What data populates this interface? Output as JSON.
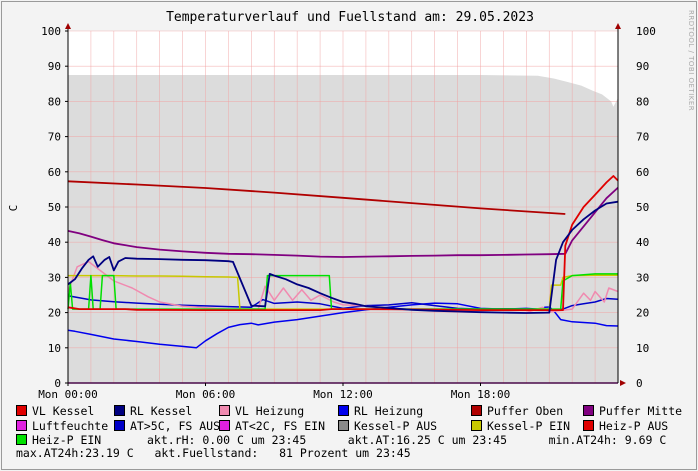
{
  "chart_data": {
    "type": "area",
    "title": "Temperaturverlauf und Fuellstand am: 29.05.2023",
    "ylabel": "C",
    "ylim": [
      0,
      100
    ],
    "xlim": [
      0,
      24
    ],
    "yticks": [
      0,
      10,
      20,
      30,
      40,
      50,
      60,
      70,
      80,
      90,
      100
    ],
    "xticks": [
      {
        "x": 0,
        "label": "Mon 00:00"
      },
      {
        "x": 6,
        "label": "Mon 06:00"
      },
      {
        "x": 12,
        "label": "Mon 12:00"
      },
      {
        "x": 18,
        "label": "Mon 18:00"
      }
    ],
    "grid": true,
    "legend_position": "bottom",
    "fill_series": {
      "name": "akt.Fuellstand",
      "x": [
        0,
        3,
        6,
        9,
        12,
        15,
        18,
        20.5,
        21.2,
        21.8,
        22.4,
        22.9,
        23.3,
        23.7,
        23.8,
        24
      ],
      "y": [
        87.5,
        87.5,
        87.5,
        87.5,
        87.5,
        87.5,
        87.5,
        87.3,
        86.5,
        85.5,
        84.5,
        83.0,
        82.0,
        80.0,
        78.5,
        81.0
      ]
    },
    "series": [
      {
        "name": "Luftfeuchte",
        "color": "#e020e0",
        "x": [
          0,
          24
        ],
        "y": [
          0,
          0
        ]
      },
      {
        "name": "Puffer Oben",
        "color": "#b00000",
        "x": [
          0,
          3,
          6,
          9,
          12,
          15,
          18,
          21.7
        ],
        "y": [
          57.3,
          56.4,
          55.4,
          54.1,
          52.6,
          51.1,
          49.6,
          48.0
        ]
      },
      {
        "name": "Puffer Mitte",
        "color": "#800080",
        "x": [
          0,
          0.5,
          1,
          1.5,
          2,
          3,
          4,
          5,
          6,
          7,
          8,
          9,
          10,
          11,
          12,
          13,
          14,
          15,
          16,
          17,
          18,
          19,
          20,
          21,
          21.7,
          22,
          22.5,
          23,
          23.5,
          24
        ],
        "y": [
          43.2,
          42.5,
          41.6,
          40.6,
          39.7,
          38.6,
          37.9,
          37.4,
          37.0,
          36.7,
          36.6,
          36.4,
          36.2,
          35.9,
          35.8,
          35.9,
          36.0,
          36.1,
          36.2,
          36.3,
          36.3,
          36.4,
          36.5,
          36.6,
          36.7,
          40.5,
          44.5,
          48.5,
          52.5,
          55.5
        ]
      },
      {
        "name": "RL Heizung",
        "color": "#0000ee",
        "x": [
          0,
          0.3,
          1,
          2,
          3,
          4,
          5,
          5.6,
          6,
          6.5,
          7,
          7.5,
          8,
          8.3,
          9,
          10,
          11,
          12,
          13,
          14,
          15,
          16,
          17,
          18,
          19,
          20,
          20.5,
          20.7,
          20.8,
          21,
          21.2,
          21.5,
          22,
          22.5,
          23,
          23.5,
          24
        ],
        "y": [
          15.0,
          14.7,
          13.8,
          12.5,
          11.8,
          11.0,
          10.4,
          10.0,
          12.0,
          14.0,
          15.8,
          16.6,
          17.0,
          16.5,
          17.3,
          18.0,
          19.0,
          20.0,
          20.8,
          21.5,
          22.2,
          22.7,
          22.5,
          21.2,
          21.0,
          21.2,
          21.0,
          20.8,
          21.5,
          21.6,
          20.5,
          18.0,
          17.4,
          17.2,
          17.0,
          16.3,
          16.2
        ]
      },
      {
        "name": "AT>5C, FS AUS",
        "color": "#0000c8",
        "x": [
          0,
          1,
          2,
          3,
          4,
          5,
          6,
          7,
          8,
          8.5,
          9,
          10,
          11,
          12,
          13,
          14,
          15,
          16,
          17,
          18,
          19,
          20,
          21,
          21.6,
          22,
          22.5,
          23,
          23.5,
          24
        ],
        "y": [
          24.8,
          23.6,
          23.1,
          22.7,
          22.4,
          22.1,
          21.9,
          21.7,
          21.5,
          23.7,
          22.6,
          23.0,
          22.5,
          21.2,
          22.0,
          22.2,
          22.8,
          22.0,
          21.2,
          21.0,
          21.1,
          21.0,
          20.6,
          21.0,
          22.0,
          22.5,
          23.0,
          24.0,
          23.8
        ]
      },
      {
        "name": "VL Heizung",
        "color": "#f08ab0",
        "x": [
          0,
          0.4,
          0.9,
          1.6,
          2,
          2.8,
          3.5,
          4,
          4.6,
          5,
          6,
          7,
          8.3,
          8.6,
          9,
          9.4,
          9.8,
          10.2,
          10.6,
          11,
          11.6,
          12,
          12.8,
          13.5,
          14,
          15,
          16,
          17,
          18,
          19,
          20,
          20.7,
          21,
          22,
          22.5,
          22.8,
          23,
          23.4,
          23.6,
          24
        ],
        "y": [
          26.0,
          33.0,
          34.5,
          31.0,
          29.0,
          27.0,
          24.5,
          23.0,
          22.3,
          21.8,
          21.4,
          21.0,
          21.0,
          27.5,
          23.5,
          27.0,
          23.5,
          26.5,
          23.5,
          25.0,
          23.0,
          22.2,
          22.0,
          21.5,
          21.0,
          20.8,
          20.6,
          20.4,
          20.2,
          20.0,
          20.0,
          21.5,
          20.2,
          21.0,
          25.5,
          23.5,
          26.0,
          23.0,
          27.0,
          26.0
        ]
      },
      {
        "name": "Kessel-P EIN",
        "color": "#c8c800",
        "x": [
          0,
          1,
          2,
          3,
          4,
          5,
          6,
          7,
          7.4,
          7.5,
          8,
          9,
          10,
          12,
          15,
          18,
          20,
          21.0,
          21.1,
          21.5,
          21.6,
          22,
          23,
          24
        ],
        "y": [
          30.5,
          30.5,
          30.5,
          30.4,
          30.4,
          30.3,
          30.2,
          30.1,
          30.0,
          21.0,
          21.0,
          21.0,
          21.0,
          21.0,
          21.0,
          21.0,
          21.0,
          21.0,
          27.8,
          27.8,
          30.0,
          30.5,
          30.6,
          30.6
        ]
      },
      {
        "name": "Heiz-P EIN",
        "color": "#00e000",
        "x": [
          0,
          0.1,
          0.2,
          0.9,
          1.0,
          1.1,
          1.4,
          1.5,
          1.9,
          2.0,
          2.1,
          8.6,
          8.7,
          11.0,
          11.4,
          11.5,
          21.5,
          21.6,
          22,
          23,
          24
        ],
        "y": [
          21.0,
          28.5,
          21.0,
          21.0,
          30.5,
          21.0,
          21.0,
          30.5,
          30.5,
          30.5,
          21.0,
          21.0,
          30.5,
          30.5,
          30.5,
          21.0,
          21.0,
          29.0,
          30.5,
          31.0,
          31.0
        ]
      },
      {
        "name": "Heiz-P AUS",
        "color": "#e00000",
        "x": [
          0,
          0.5,
          1.0,
          1.6,
          2.1,
          2.5,
          3,
          6,
          8.6,
          8.8,
          9,
          11,
          11.5,
          12,
          15,
          18,
          21.6,
          21.7,
          22,
          22.5,
          23,
          23.5,
          23.8,
          24
        ],
        "y": [
          21.5,
          21.0,
          21.0,
          21.0,
          21.0,
          21.0,
          20.8,
          20.7,
          20.7,
          20.7,
          20.7,
          20.7,
          21.0,
          21.0,
          20.9,
          20.7,
          20.7,
          39.0,
          45.0,
          50.0,
          53.5,
          57.0,
          58.8,
          57.5
        ]
      },
      {
        "name": "RL Kessel",
        "color": "#000080",
        "x": [
          0,
          0.3,
          0.6,
          0.9,
          1.1,
          1.3,
          1.6,
          1.8,
          2.0,
          2.2,
          2.5,
          3,
          4,
          5,
          6,
          7,
          7.2,
          8.0,
          8.6,
          8.8,
          9,
          9.5,
          10,
          10.5,
          11,
          11.5,
          12,
          12.5,
          13,
          14,
          15,
          16,
          17,
          18,
          19,
          20,
          21.0,
          21.3,
          21.6,
          22,
          22.5,
          23,
          23.5,
          24
        ],
        "y": [
          28.0,
          29.5,
          32.5,
          35.0,
          36.0,
          33.0,
          35.0,
          35.8,
          32.0,
          34.5,
          35.5,
          35.3,
          35.2,
          35.0,
          34.9,
          34.6,
          34.4,
          22.0,
          21.8,
          31.0,
          30.5,
          29.5,
          28.0,
          27.0,
          25.5,
          24.2,
          23.0,
          22.5,
          21.8,
          21.3,
          20.8,
          20.5,
          20.3,
          20.1,
          20.0,
          19.9,
          20.0,
          35.0,
          40.0,
          43.5,
          46.5,
          49.0,
          51.0,
          51.5
        ]
      }
    ],
    "legend": [
      {
        "name": "VL Kessel",
        "color": "#e00000"
      },
      {
        "name": "RL Kessel",
        "color": "#000080"
      },
      {
        "name": "VL Heizung",
        "color": "#f08ab0"
      },
      {
        "name": "RL Heizung",
        "color": "#0000ee"
      },
      {
        "name": "Puffer Oben",
        "color": "#b00000"
      },
      {
        "name": "Puffer Mitte",
        "color": "#800080"
      },
      {
        "name": "Luftfeuchte",
        "color": "#e020e0"
      },
      {
        "name": "AT>5C, FS AUS",
        "color": "#0000c8"
      },
      {
        "name": "AT<2C, FS EIN",
        "color": "#e020e0"
      },
      {
        "name": "Kessel-P AUS",
        "color": "#8a8a8a"
      },
      {
        "name": "Kessel-P EIN",
        "color": "#c8c800"
      },
      {
        "name": "Heiz-P AUS",
        "color": "#e00000"
      },
      {
        "name": "Heiz-P EIN",
        "color": "#00e000"
      }
    ],
    "status": {
      "line1": "akt.rH: 0.00 C um 23:45      akt.AT:16.25 C um 23:45      min.AT24h: 9.69 C",
      "line2": "max.AT24h:23.19 C   akt.Fuellstand:   81 Prozent um 23:45"
    },
    "watermark": "RRDTOOL / TOBI OETIKER"
  }
}
